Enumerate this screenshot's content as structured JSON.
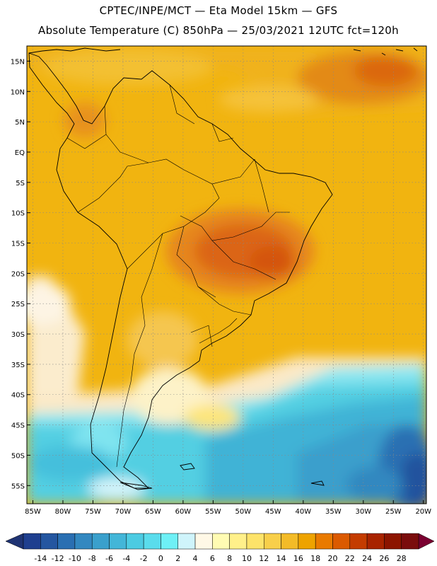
{
  "header": {
    "line1": "CPTEC/INPE/MCT —  Eta Model 15km — GFS",
    "line2": "Absolute Temperature (C) 850hPa — 25/03/2021 12UTC fct=120h"
  },
  "map": {
    "lat_labels": [
      "15N",
      "10N",
      "5N",
      "EQ",
      "5S",
      "10S",
      "15S",
      "20S",
      "25S",
      "30S",
      "35S",
      "40S",
      "45S",
      "50S",
      "55S"
    ],
    "lon_labels": [
      "85W",
      "80W",
      "75W",
      "70W",
      "65W",
      "60W",
      "55W",
      "50W",
      "45W",
      "40W",
      "35W",
      "30W",
      "25W",
      "20W"
    ]
  },
  "colorbar": {
    "labels": [
      "-14",
      "-12",
      "-10",
      "-8",
      "-6",
      "-4",
      "-2",
      "0",
      "2",
      "4",
      "6",
      "8",
      "10",
      "12",
      "14",
      "16",
      "18",
      "20",
      "22",
      "24",
      "26",
      "28"
    ],
    "colors": [
      "#1f3f8f",
      "#2456a0",
      "#2a6fb2",
      "#3388c0",
      "#3aa0cc",
      "#43b6d8",
      "#4ccbe2",
      "#5adcec",
      "#6ef0f6",
      "#cff4fb",
      "#fff8e6",
      "#fffbb3",
      "#fff08a",
      "#fde36a",
      "#f8cf4a",
      "#f3bb28",
      "#eea300",
      "#e97a00",
      "#db5a00",
      "#c43c00",
      "#a82400",
      "#8c1500",
      "#7a0c0c"
    ],
    "under_color": "#1f3373",
    "over_color": "#7a0030"
  }
}
